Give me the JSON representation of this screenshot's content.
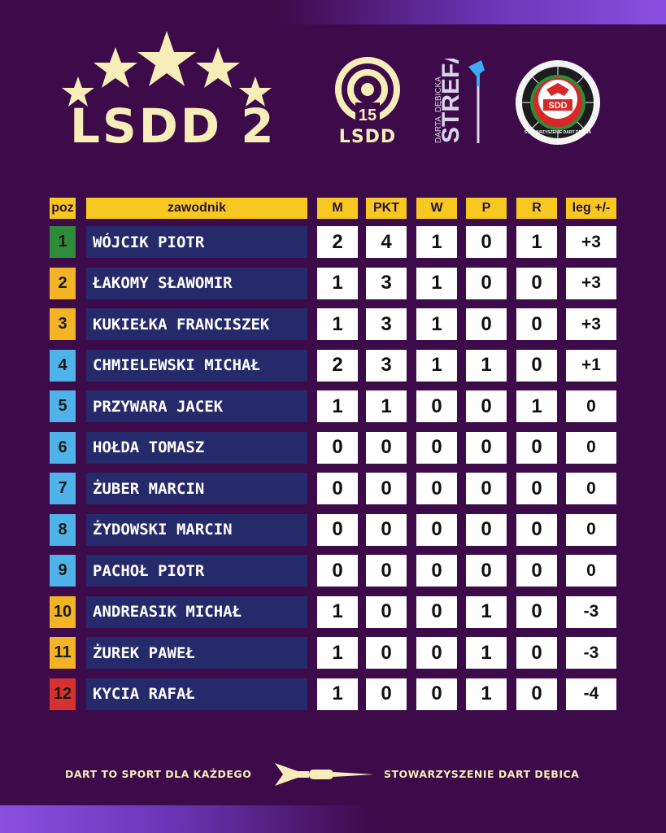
{
  "header": {
    "title": "LSDD 2",
    "logo_lsdd_number": "15",
    "logo_lsdd_text": "LSDD",
    "logo_strefa_top": "STREFA",
    "logo_strefa_side": "DĘBICKA",
    "logo_strefa_bottom": "DARTA",
    "logo_sdd_letters": "SDD",
    "logo_sdd_ring": "STOWARZYSZENIE DART DĘBICA"
  },
  "columns": {
    "pos": "poz",
    "player": "zawodnik",
    "m": "M",
    "pkt": "PKT",
    "w": "W",
    "p": "P",
    "r": "R",
    "leg": "leg +/-"
  },
  "rows": [
    {
      "pos": "1",
      "name": "WÓJCIK PIOTR",
      "m": "2",
      "pkt": "4",
      "w": "1",
      "p": "0",
      "r": "1",
      "leg": "+3",
      "color": "#2e8b3a"
    },
    {
      "pos": "2",
      "name": "ŁAKOMY SŁAWOMIR",
      "m": "1",
      "pkt": "3",
      "w": "1",
      "p": "0",
      "r": "0",
      "leg": "+3",
      "color": "#f2b324"
    },
    {
      "pos": "3",
      "name": "KUKIEŁKA FRANCISZEK",
      "m": "1",
      "pkt": "3",
      "w": "1",
      "p": "0",
      "r": "0",
      "leg": "+3",
      "color": "#f2b324"
    },
    {
      "pos": "4",
      "name": "CHMIELEWSKI MICHAŁ",
      "m": "2",
      "pkt": "3",
      "w": "1",
      "p": "1",
      "r": "0",
      "leg": "+1",
      "color": "#4fb3ea"
    },
    {
      "pos": "5",
      "name": "PRZYWARA JACEK",
      "m": "1",
      "pkt": "1",
      "w": "0",
      "p": "0",
      "r": "1",
      "leg": "0",
      "color": "#4fb3ea"
    },
    {
      "pos": "6",
      "name": "HOŁDA TOMASZ",
      "m": "0",
      "pkt": "0",
      "w": "0",
      "p": "0",
      "r": "0",
      "leg": "0",
      "color": "#4fb3ea"
    },
    {
      "pos": "7",
      "name": "ŻUBER MARCIN",
      "m": "0",
      "pkt": "0",
      "w": "0",
      "p": "0",
      "r": "0",
      "leg": "0",
      "color": "#4fb3ea"
    },
    {
      "pos": "8",
      "name": "ŻYDOWSKI MARCIN",
      "m": "0",
      "pkt": "0",
      "w": "0",
      "p": "0",
      "r": "0",
      "leg": "0",
      "color": "#4fb3ea"
    },
    {
      "pos": "9",
      "name": "PACHOŁ PIOTR",
      "m": "0",
      "pkt": "0",
      "w": "0",
      "p": "0",
      "r": "0",
      "leg": "0",
      "color": "#4fb3ea"
    },
    {
      "pos": "10",
      "name": "ANDREASIK MICHAŁ",
      "m": "1",
      "pkt": "0",
      "w": "0",
      "p": "1",
      "r": "0",
      "leg": "-3",
      "color": "#f2b324"
    },
    {
      "pos": "11",
      "name": "ŻUREK PAWEŁ",
      "m": "1",
      "pkt": "0",
      "w": "0",
      "p": "1",
      "r": "0",
      "leg": "-3",
      "color": "#f2b324"
    },
    {
      "pos": "12",
      "name": "KYCIA RAFAŁ",
      "m": "1",
      "pkt": "0",
      "w": "0",
      "p": "1",
      "r": "0",
      "leg": "-4",
      "color": "#d63031"
    }
  ],
  "footer": {
    "left": "DART TO SPORT DLA KAŻDEGO",
    "right": "STOWARZYSZENIE DART DĘBICA"
  }
}
